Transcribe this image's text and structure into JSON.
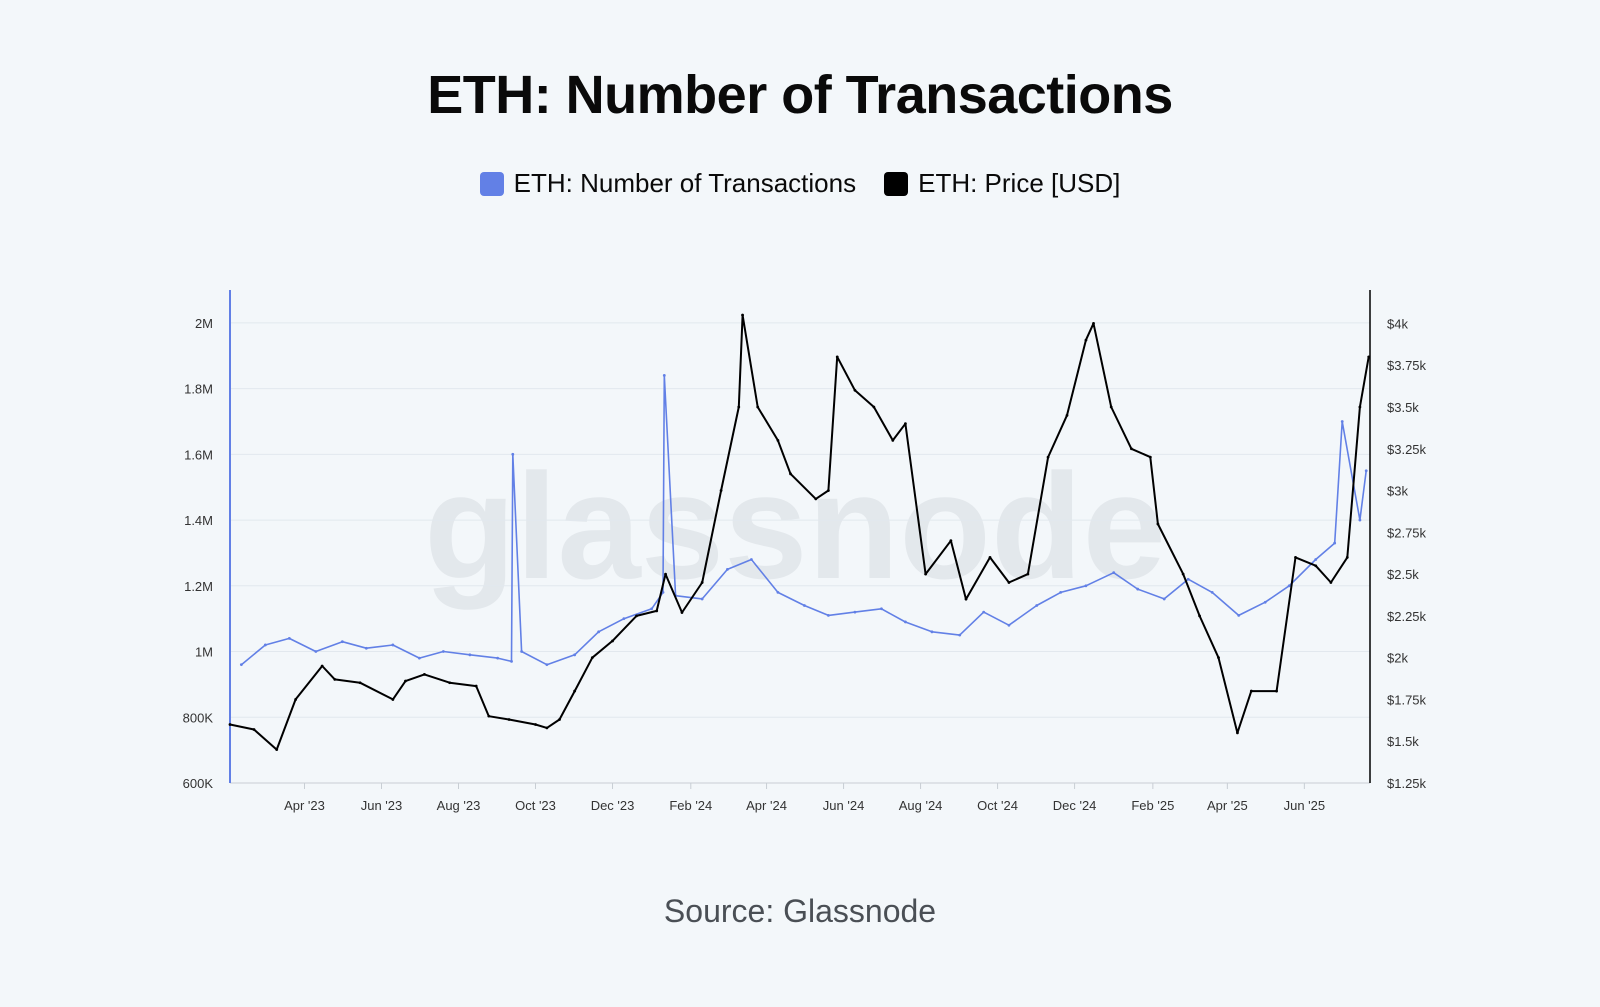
{
  "title": "ETH: Number of Transactions",
  "legend": {
    "transactions_label": "ETH: Number of Transactions",
    "price_label": "ETH: Price [USD]"
  },
  "source": "Source: Glassnode",
  "watermark": "glassnode",
  "colors": {
    "transactions": "#6280e6",
    "price": "#000000",
    "background": "#f3f7fa",
    "grid": "#e2e8ee"
  },
  "chart_data": {
    "type": "line",
    "title": "ETH: Number of Transactions",
    "grid": true,
    "legend_position": "top-center",
    "x_ticks": [
      "Apr '23",
      "Jun '23",
      "Aug '23",
      "Oct '23",
      "Dec '23",
      "Feb '24",
      "Apr '24",
      "Jun '24",
      "Aug '24",
      "Oct '24",
      "Dec '24",
      "Feb '25",
      "Apr '25",
      "Jun '25"
    ],
    "y_left": {
      "ticks": [
        "600K",
        "800K",
        "1M",
        "1.2M",
        "1.4M",
        "1.6M",
        "1.8M",
        "2M"
      ],
      "range": [
        600000,
        2100000
      ]
    },
    "y_right": {
      "ticks": [
        "$1.25k",
        "$1.5k",
        "$1.75k",
        "$2k",
        "$2.25k",
        "$2.5k",
        "$2.75k",
        "$3k",
        "$3.25k",
        "$3.5k",
        "$3.75k",
        "$4k"
      ],
      "range": [
        1250,
        4200
      ]
    },
    "series": [
      {
        "name": "ETH: Number of Transactions",
        "axis": "left",
        "x": [
          "2023-02-10",
          "2023-03-01",
          "2023-03-20",
          "2023-04-10",
          "2023-05-01",
          "2023-05-20",
          "2023-06-10",
          "2023-07-01",
          "2023-07-20",
          "2023-08-10",
          "2023-09-01",
          "2023-09-12",
          "2023-09-13",
          "2023-09-20",
          "2023-10-10",
          "2023-11-01",
          "2023-11-20",
          "2023-12-10",
          "2024-01-01",
          "2024-01-10",
          "2024-01-11",
          "2024-01-20",
          "2024-02-10",
          "2024-03-01",
          "2024-03-20",
          "2024-04-10",
          "2024-05-01",
          "2024-05-20",
          "2024-06-10",
          "2024-07-01",
          "2024-07-20",
          "2024-08-10",
          "2024-09-01",
          "2024-09-20",
          "2024-10-10",
          "2024-11-01",
          "2024-11-20",
          "2024-12-10",
          "2025-01-01",
          "2025-01-20",
          "2025-02-10",
          "2025-03-01",
          "2025-03-20",
          "2025-04-10",
          "2025-05-01",
          "2025-05-20",
          "2025-06-10",
          "2025-06-25",
          "2025-07-01",
          "2025-07-15",
          "2025-07-20"
        ],
        "values": [
          960000,
          1020000,
          1040000,
          1000000,
          1030000,
          1010000,
          1020000,
          980000,
          1000000,
          990000,
          980000,
          970000,
          1600000,
          1000000,
          960000,
          990000,
          1060000,
          1100000,
          1130000,
          1180000,
          1840000,
          1170000,
          1160000,
          1250000,
          1280000,
          1180000,
          1140000,
          1110000,
          1120000,
          1130000,
          1090000,
          1060000,
          1050000,
          1120000,
          1080000,
          1140000,
          1180000,
          1200000,
          1240000,
          1190000,
          1160000,
          1220000,
          1180000,
          1110000,
          1150000,
          1200000,
          1280000,
          1330000,
          1700000,
          1400000,
          1550000
        ]
      },
      {
        "name": "ETH: Price [USD]",
        "axis": "right",
        "x": [
          "2023-02-01",
          "2023-02-20",
          "2023-03-10",
          "2023-03-25",
          "2023-04-15",
          "2023-04-25",
          "2023-05-15",
          "2023-06-10",
          "2023-06-20",
          "2023-07-05",
          "2023-07-25",
          "2023-08-15",
          "2023-08-25",
          "2023-09-10",
          "2023-10-01",
          "2023-10-10",
          "2023-10-20",
          "2023-11-01",
          "2023-11-15",
          "2023-12-01",
          "2023-12-20",
          "2024-01-05",
          "2024-01-12",
          "2024-01-25",
          "2024-02-10",
          "2024-02-25",
          "2024-03-10",
          "2024-03-13",
          "2024-03-25",
          "2024-04-10",
          "2024-04-20",
          "2024-05-10",
          "2024-05-20",
          "2024-05-27",
          "2024-06-10",
          "2024-06-25",
          "2024-07-10",
          "2024-07-20",
          "2024-08-05",
          "2024-08-25",
          "2024-09-06",
          "2024-09-25",
          "2024-10-10",
          "2024-10-25",
          "2024-11-10",
          "2024-11-25",
          "2024-12-10",
          "2024-12-16",
          "2024-12-30",
          "2025-01-15",
          "2025-01-30",
          "2025-02-05",
          "2025-02-25",
          "2025-03-10",
          "2025-03-25",
          "2025-04-09",
          "2025-04-20",
          "2025-05-10",
          "2025-05-25",
          "2025-06-10",
          "2025-06-22",
          "2025-07-05",
          "2025-07-15",
          "2025-07-22"
        ],
        "values": [
          1600,
          1570,
          1450,
          1750,
          1950,
          1870,
          1850,
          1750,
          1860,
          1900,
          1850,
          1830,
          1650,
          1630,
          1600,
          1580,
          1630,
          1800,
          2000,
          2100,
          2250,
          2280,
          2500,
          2270,
          2450,
          3000,
          3500,
          4050,
          3500,
          3300,
          3100,
          2950,
          3000,
          3800,
          3600,
          3500,
          3300,
          3400,
          2500,
          2700,
          2350,
          2600,
          2450,
          2500,
          3200,
          3450,
          3900,
          4000,
          3500,
          3250,
          3200,
          2800,
          2500,
          2250,
          2000,
          1550,
          1800,
          1800,
          2600,
          2550,
          2450,
          2600,
          3500,
          3800
        ]
      }
    ]
  }
}
